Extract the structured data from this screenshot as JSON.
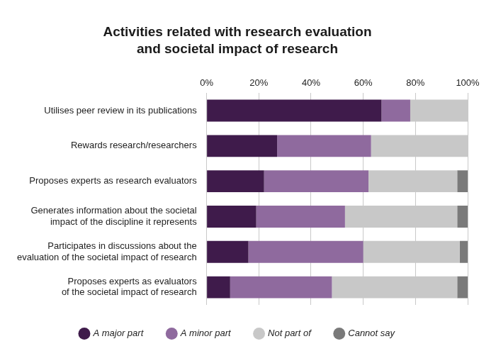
{
  "chart_data": {
    "type": "bar",
    "orientation": "horizontal",
    "stacked": true,
    "title": "Activities related with research evaluation\nand societal impact of research",
    "categories": [
      "Utilises peer review in its publications",
      "Rewards research/researchers",
      "Proposes experts as research evaluators",
      "Generates information about the societal\nimpact of the discipline it represents",
      "Participates in discussions about the\nevaluation of the societal impact of research",
      "Proposes experts as evaluators\nof the societal impact of research"
    ],
    "series": [
      {
        "name": "A major part",
        "color": "#3f1b4b",
        "values": [
          67,
          27,
          22,
          19,
          16,
          9
        ]
      },
      {
        "name": "A minor part",
        "color": "#8f6a9e",
        "values": [
          11,
          36,
          40,
          34,
          44,
          39
        ]
      },
      {
        "name": "Not part of",
        "color": "#c8c8c8",
        "values": [
          22,
          37,
          34,
          43,
          37,
          48
        ]
      },
      {
        "name": "Cannot say",
        "color": "#7a7a7a",
        "values": [
          0,
          0,
          4,
          4,
          3,
          4
        ]
      }
    ],
    "xlim": [
      0,
      100
    ],
    "xticks": [
      {
        "value": 0,
        "label": "0%"
      },
      {
        "value": 20,
        "label": "20%"
      },
      {
        "value": 40,
        "label": "40%"
      },
      {
        "value": 60,
        "label": "60%"
      },
      {
        "value": 80,
        "label": "80%"
      },
      {
        "value": 100,
        "label": "100%"
      }
    ],
    "grid": true,
    "legend": "bottom"
  }
}
